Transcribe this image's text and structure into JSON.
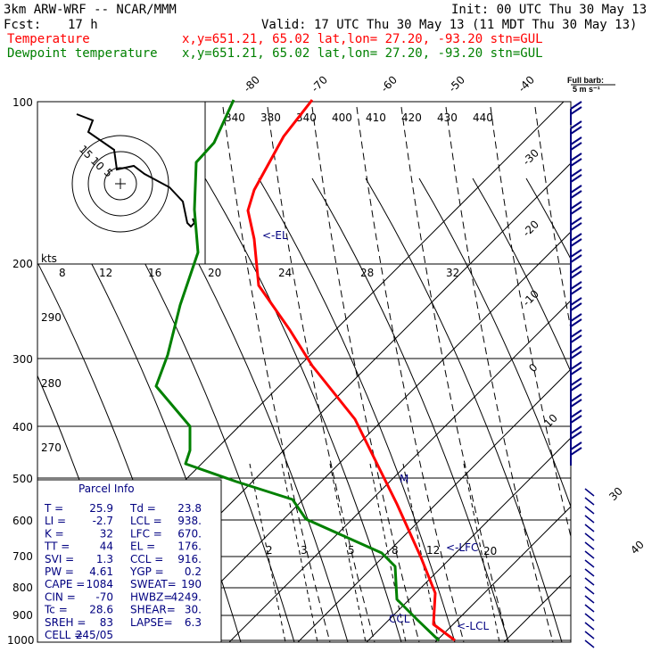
{
  "header": {
    "model": "3km ARW-WRF -- NCAR/MMM",
    "init": "Init: 00 UTC Thu 30 May 13",
    "fcst_label": "Fcst:",
    "fcst_value": "17 h",
    "valid": "Valid: 17 UTC Thu 30 May 13 (11 MDT Thu 30 May 13)",
    "temp_label": "Temperature",
    "temp_loc": "x,y=651.21, 65.02   lat,lon= 27.20, -93.20  stn=GUL",
    "dew_label": "Dewpoint temperature",
    "dew_loc": "x,y=651.21, 65.02   lat,lon= 27.20, -93.20  stn=GUL"
  },
  "colors": {
    "temperature": "#ff0000",
    "dewpoint": "#008000",
    "info": "#000080",
    "lines": "#000000"
  },
  "chart_data": {
    "type": "line",
    "pressure_levels": [
      "100",
      "200",
      "300",
      "400",
      "500",
      "600",
      "700",
      "800",
      "900",
      "1000"
    ],
    "skewed_isotherm_labels": [
      "-80",
      "-70",
      "-60",
      "-50",
      "-40",
      "-30",
      "-20",
      "-10",
      "0",
      "10",
      "20",
      "30",
      "40"
    ],
    "theta_labels": [
      "340",
      "380",
      "340",
      "400",
      "410",
      "420",
      "430",
      "440"
    ],
    "mixing_ratio_labels": [
      "2",
      "3",
      "5",
      "8",
      "12",
      "20"
    ],
    "hodograph_speed_labels": [
      "8",
      "12",
      "16",
      "20",
      "24",
      "28",
      "32"
    ],
    "isentrope_labels": [
      "290",
      "280",
      "270"
    ],
    "hodo_ring_labels": [
      "15",
      "10",
      "5"
    ],
    "kts_label": "kts",
    "barb_legend": [
      "Full barb:",
      "5 m s⁻¹"
    ],
    "markers": {
      "el": "<-EL",
      "lfc": "<-LFC",
      "lcl": "<-LCL",
      "ccl": "CCL",
      "m": "M"
    },
    "series": [
      {
        "name": "Temperature",
        "points": [
          [
            350,
            112
          ],
          [
            318,
            153
          ],
          [
            285,
            213
          ],
          [
            278,
            236
          ],
          [
            285,
            268
          ],
          [
            290,
            320
          ],
          [
            325,
            370
          ],
          [
            350,
            410
          ],
          [
            398,
            470
          ],
          [
            445,
            565
          ],
          [
            472,
            625
          ],
          [
            488,
            665
          ],
          [
            486,
            700
          ],
          [
            510,
            718
          ]
        ]
      },
      {
        "name": "Dewpoint temperature",
        "points": [
          [
            262,
            112
          ],
          [
            240,
            160
          ],
          [
            220,
            182
          ],
          [
            218,
            235
          ],
          [
            222,
            283
          ],
          [
            202,
            342
          ],
          [
            188,
            398
          ],
          [
            175,
            433
          ],
          [
            213,
            478
          ],
          [
            213,
            505
          ],
          [
            208,
            520
          ],
          [
            265,
            540
          ],
          [
            328,
            560
          ],
          [
            343,
            582
          ],
          [
            428,
            620
          ],
          [
            443,
            635
          ],
          [
            445,
            672
          ],
          [
            458,
            685
          ],
          [
            468,
            695
          ],
          [
            492,
            718
          ]
        ]
      }
    ]
  },
  "parcel": {
    "title": "Parcel Info",
    "rows": [
      [
        "T  =",
        "25.9",
        "Td =",
        "23.8"
      ],
      [
        "LI =",
        "-2.7",
        "LCL =",
        "938."
      ],
      [
        "K  =",
        "32",
        "LFC =",
        "670."
      ],
      [
        "TT =",
        "44",
        "EL =",
        "176."
      ],
      [
        "SVI =",
        "1.3",
        "CCL =",
        "916."
      ],
      [
        "PW =",
        "4.61",
        "YGP =",
        "0.2"
      ],
      [
        "CAPE =",
        "1084",
        "SWEAT=",
        "190"
      ],
      [
        "CIN =",
        "-70",
        "HWBZ=",
        "4249."
      ],
      [
        "Tc =",
        "28.6",
        "SHEAR=",
        "30."
      ],
      [
        "SREH =",
        "83",
        "LAPSE=",
        "6.3"
      ],
      [
        "CELL =",
        "245/05",
        "",
        ""
      ]
    ]
  }
}
